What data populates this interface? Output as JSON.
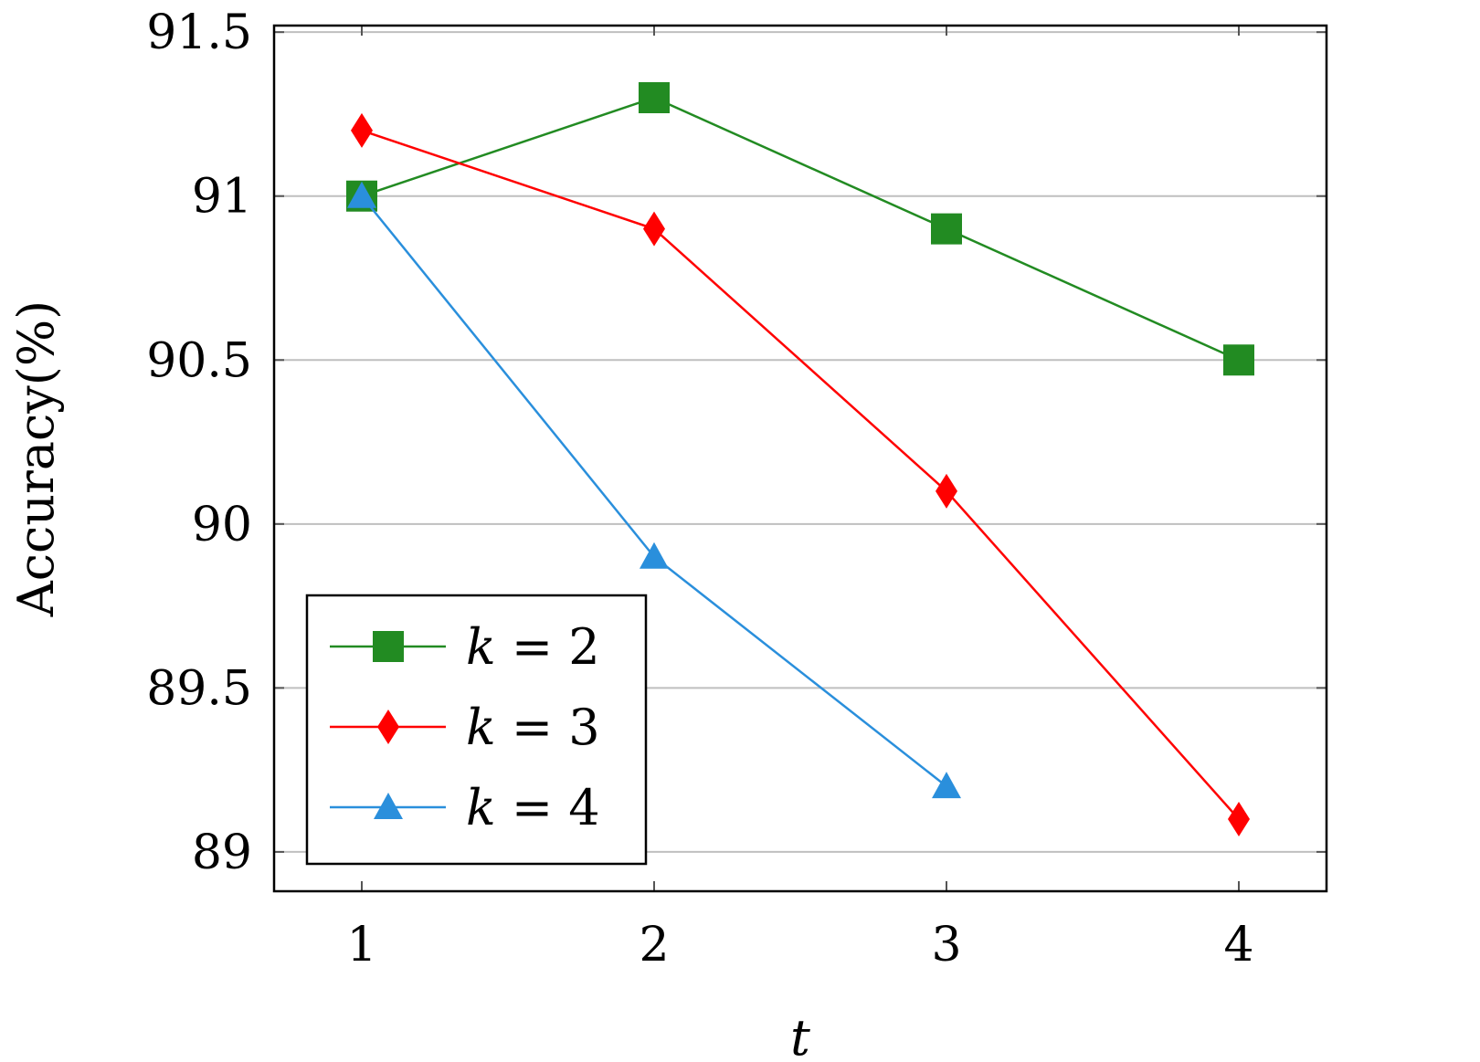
{
  "chart_data": {
    "type": "line",
    "x": [
      1,
      2,
      3,
      4
    ],
    "xlabel": "t",
    "ylabel": "Accuracy(%)",
    "xlim": [
      0.7,
      4.3
    ],
    "ylim": [
      88.88,
      91.52
    ],
    "xticks": [
      1,
      2,
      3,
      4
    ],
    "xtick_labels": [
      "1",
      "2",
      "3",
      "4"
    ],
    "yticks": [
      89,
      89.5,
      90,
      90.5,
      91,
      91.5
    ],
    "ytick_labels": [
      "89",
      "89.5",
      "90",
      "90.5",
      "91",
      "91.5"
    ],
    "grid": "horizontal",
    "legend_position": "bottom-left",
    "series": [
      {
        "name": "k = 2",
        "legend_var": "k",
        "legend_value": "2",
        "color": "#228B22",
        "marker": "square",
        "x": [
          1,
          2,
          3,
          4
        ],
        "values": [
          91.0,
          91.3,
          90.9,
          90.5
        ]
      },
      {
        "name": "k = 3",
        "legend_var": "k",
        "legend_value": "3",
        "color": "#FF0000",
        "marker": "diamond",
        "x": [
          1,
          2,
          3,
          4
        ],
        "values": [
          91.2,
          90.9,
          90.1,
          89.1
        ]
      },
      {
        "name": "k = 4",
        "legend_var": "k",
        "legend_value": "4",
        "color": "#2A8FDC",
        "marker": "triangle",
        "x": [
          1,
          2,
          3
        ],
        "values": [
          91.0,
          89.9,
          89.2
        ]
      }
    ]
  }
}
